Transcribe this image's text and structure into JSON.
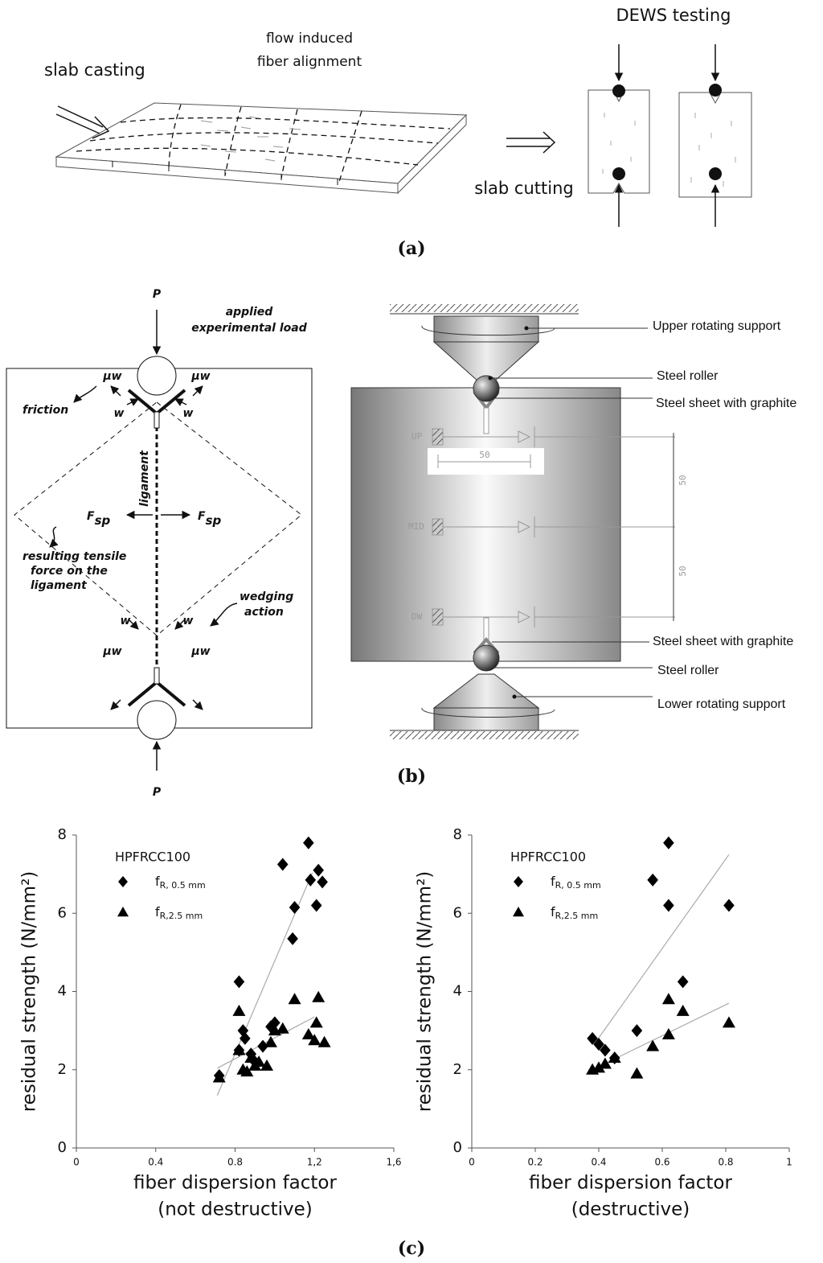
{
  "panel_a": {
    "caption": "(a)",
    "slab_casting": "slab casting",
    "flow_induced": "flow induced",
    "fiber_alignment": "fiber alignment",
    "dews_testing": "DEWS testing",
    "slab_cutting": "slab cutting"
  },
  "panel_b": {
    "caption": "(b)",
    "mechanism": {
      "load_top": "P",
      "load_bottom": "P",
      "applied": "applied",
      "experimental_load": "experimental load",
      "mu_w": [
        "μw",
        "μw",
        "μw",
        "μw"
      ],
      "w": [
        "w",
        "w",
        "w",
        "w"
      ],
      "friction": "friction",
      "ligament": "ligament",
      "fsp": [
        "Fsp",
        "Fsp"
      ],
      "tensile": [
        "resulting tensile",
        "force on the",
        "ligament"
      ],
      "wedging": [
        "wedging",
        "action"
      ]
    },
    "setup": {
      "upper_support": "Upper rotating support",
      "steel_roller_top": "Steel roller",
      "sheet_top": "Steel sheet with graphite",
      "up": "UP",
      "mid": "MID",
      "dw": "DW",
      "dim_h": "50",
      "dim_v1": "50",
      "dim_v2": "50",
      "sheet_bottom": "Steel sheet with graphite",
      "steel_roller_bottom": "Steel roller",
      "lower_support": "Lower rotating support"
    }
  },
  "panel_c": {
    "caption": "(c)"
  },
  "chart_data": [
    {
      "type": "scatter",
      "legend_title": "HPFRCC100",
      "ylabel": "residual strength (N/mm²)",
      "xlabel": [
        "fiber dispersion factor",
        "(not destructive)"
      ],
      "xlim": [
        0,
        1.6
      ],
      "xticks": [
        0,
        0.4,
        0.8,
        {
          "value": 1.2,
          "label": "1,2"
        },
        {
          "value": 1.6,
          "label": "1,6"
        }
      ],
      "ylim": [
        0,
        8
      ],
      "yticks": [
        0,
        2,
        4,
        6,
        8
      ],
      "series": [
        {
          "name": "fR, 0.5 mm",
          "marker": "diamond",
          "color": "#000000",
          "x": [
            0.72,
            0.82,
            0.82,
            0.84,
            0.85,
            0.88,
            0.9,
            0.94,
            0.98,
            1.0,
            1.04,
            1.09,
            1.1,
            1.17,
            1.18,
            1.21,
            1.22,
            1.24
          ],
          "values": [
            1.85,
            4.25,
            2.5,
            3.0,
            2.8,
            2.4,
            2.2,
            2.6,
            3.1,
            3.2,
            7.25,
            5.35,
            6.15,
            7.8,
            6.85,
            6.2,
            7.1,
            6.8
          ]
        },
        {
          "name": "fR,2.5 mm",
          "marker": "triangle",
          "color": "#000000",
          "x": [
            0.72,
            0.82,
            0.82,
            0.84,
            0.86,
            0.88,
            0.9,
            0.92,
            0.96,
            0.98,
            1.0,
            1.04,
            1.1,
            1.17,
            1.2,
            1.21,
            1.22,
            1.25
          ],
          "values": [
            1.8,
            3.5,
            2.5,
            2.0,
            1.95,
            2.3,
            2.1,
            2.2,
            2.1,
            2.7,
            3.0,
            3.05,
            3.8,
            2.9,
            2.75,
            3.2,
            3.85,
            2.7
          ]
        }
      ],
      "trendlines": [
        {
          "color": "#aaaaaa",
          "x": [
            0.71,
            1.19
          ],
          "values": [
            1.34,
            7.04
          ]
        },
        {
          "color": "#aaaaaa",
          "x": [
            0.71,
            1.2
          ],
          "values": [
            2.04,
            3.35
          ]
        }
      ]
    },
    {
      "type": "scatter",
      "legend_title": "HPFRCC100",
      "ylabel": "residual strength (N/mm²)",
      "xlabel": [
        "fiber dispersion factor",
        "(destructive)"
      ],
      "xlim": [
        0,
        1
      ],
      "xticks": [
        0,
        0.2,
        0.4,
        0.6,
        0.8,
        1
      ],
      "ylim": [
        0,
        8
      ],
      "yticks": [
        0,
        2,
        4,
        6,
        8
      ],
      "series": [
        {
          "name": "fR, 0.5 mm",
          "marker": "diamond",
          "color": "#000000",
          "x": [
            0.38,
            0.4,
            0.42,
            0.45,
            0.52,
            0.57,
            0.62,
            0.62,
            0.665,
            0.81
          ],
          "values": [
            2.8,
            2.65,
            2.5,
            2.3,
            3.0,
            6.85,
            7.8,
            6.2,
            4.25,
            6.2
          ]
        },
        {
          "name": "fR,2.5 mm",
          "marker": "triangle",
          "color": "#000000",
          "x": [
            0.38,
            0.4,
            0.42,
            0.45,
            0.52,
            0.57,
            0.62,
            0.62,
            0.665,
            0.81
          ],
          "values": [
            2.0,
            2.05,
            2.15,
            2.3,
            1.9,
            2.6,
            3.8,
            2.9,
            3.5,
            3.2
          ]
        }
      ],
      "trendlines": [
        {
          "color": "#aaaaaa",
          "x": [
            0.39,
            0.81
          ],
          "values": [
            2.7,
            7.5
          ]
        },
        {
          "color": "#aaaaaa",
          "x": [
            0.38,
            0.81
          ],
          "values": [
            2.0,
            3.7
          ]
        }
      ]
    }
  ]
}
